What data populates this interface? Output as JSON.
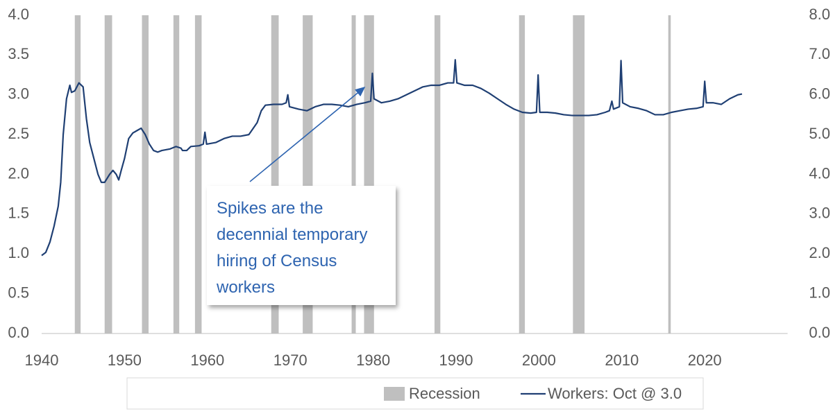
{
  "chart_data": {
    "type": "line",
    "xlim": [
      1940,
      2030
    ],
    "xticks": [
      1940,
      1950,
      1960,
      1970,
      1980,
      1990,
      2000,
      2010,
      2020
    ],
    "ylim": [
      0,
      4
    ],
    "yticks": [
      {
        "value": 0,
        "label": "0.0"
      },
      0.5,
      {
        "value": 1,
        "label": "1.0"
      },
      1.5,
      {
        "value": 2,
        "label": "2.0"
      },
      2.5,
      {
        "value": 3,
        "label": "3.0"
      },
      3.5,
      {
        "value": 4,
        "label": "4.0"
      }
    ],
    "y2lim": [
      0,
      8
    ],
    "y2ticks": [
      {
        "value": 0,
        "label": "0.0"
      },
      {
        "value": 1,
        "label": "1.0"
      },
      {
        "value": 2,
        "label": "2.0"
      },
      {
        "value": 3,
        "label": "3.0"
      },
      {
        "value": 4,
        "label": "4.0"
      },
      {
        "value": 5,
        "label": "5.0"
      },
      {
        "value": 6,
        "label": "6.0"
      },
      {
        "value": 7,
        "label": "7.0"
      },
      {
        "value": 8,
        "label": "8.0"
      }
    ],
    "grid": false,
    "legend": "bottom",
    "annotation": "Spikes are the decennial temporary hiring of Census workers",
    "series": [
      {
        "name": "Recession",
        "color": "#bfbfbf",
        "ranges": [
          [
            1944.0,
            1944.7
          ],
          [
            1947.6,
            1948.5
          ],
          [
            1952.1,
            1952.9
          ],
          [
            1955.9,
            1956.6
          ],
          [
            1958.5,
            1959.3
          ],
          [
            1967.7,
            1968.6
          ],
          [
            1971.5,
            1972.7
          ],
          [
            1977.4,
            1977.9
          ],
          [
            1978.9,
            1980.1
          ],
          [
            1987.4,
            1988.1
          ],
          [
            1997.6,
            1998.3
          ],
          [
            2004.1,
            2005.5
          ],
          [
            2015.6,
            2015.9
          ]
        ]
      },
      {
        "name": "Workers: Oct @ 3.0",
        "color": "#1f3f73",
        "x": [
          1940.0,
          1940.5,
          1941,
          1941.5,
          1942,
          1942.3,
          1942.6,
          1943,
          1943.4,
          1943.6,
          1944,
          1944.5,
          1945,
          1945.4,
          1945.8,
          1946.3,
          1946.8,
          1947.2,
          1947.6,
          1948.2,
          1948.6,
          1949,
          1949.3,
          1949.6,
          1950,
          1950.5,
          1951,
          1951.5,
          1952,
          1952.5,
          1953,
          1953.5,
          1954,
          1954.5,
          1955.5,
          1956.2,
          1956.8,
          1957,
          1957.5,
          1958,
          1959,
          1959.5,
          1959.7,
          1959.9,
          1961,
          1962,
          1963,
          1964,
          1965,
          1966,
          1966.5,
          1967,
          1968,
          1969,
          1969.5,
          1969.7,
          1969.9,
          1971,
          1972,
          1973,
          1974,
          1975,
          1976,
          1977,
          1978,
          1979,
          1979.7,
          1979.9,
          1980.1,
          1981,
          1982,
          1983,
          1984,
          1985,
          1986,
          1987,
          1988,
          1989,
          1989.7,
          1989.9,
          1990.1,
          1991,
          1992,
          1993,
          1994,
          1995,
          1996,
          1997,
          1998,
          1999,
          1999.7,
          1999.9,
          2000.1,
          2001,
          2002,
          2003,
          2004,
          2005,
          2006,
          2007,
          2008,
          2008.5,
          2008.8,
          2009,
          2009.7,
          2009.9,
          2010.1,
          2011,
          2012,
          2013,
          2014,
          2015,
          2016,
          2017,
          2018,
          2019,
          2019.8,
          2020.0,
          2020.2,
          2021,
          2022,
          2023,
          2024,
          2024.5
        ],
        "values": [
          0.98,
          1.02,
          1.15,
          1.35,
          1.6,
          1.9,
          2.5,
          2.95,
          3.12,
          3.03,
          3.05,
          3.15,
          3.1,
          2.7,
          2.4,
          2.2,
          2.0,
          1.9,
          1.9,
          2.0,
          2.05,
          2.0,
          1.93,
          2.05,
          2.2,
          2.45,
          2.52,
          2.55,
          2.58,
          2.5,
          2.38,
          2.3,
          2.28,
          2.3,
          2.32,
          2.35,
          2.33,
          2.3,
          2.3,
          2.35,
          2.36,
          2.38,
          2.53,
          2.38,
          2.4,
          2.45,
          2.48,
          2.48,
          2.5,
          2.65,
          2.8,
          2.87,
          2.88,
          2.88,
          2.9,
          3.0,
          2.85,
          2.82,
          2.8,
          2.85,
          2.88,
          2.88,
          2.87,
          2.85,
          2.88,
          2.9,
          2.92,
          3.27,
          2.95,
          2.9,
          2.92,
          2.95,
          3.0,
          3.05,
          3.1,
          3.12,
          3.12,
          3.15,
          3.15,
          3.44,
          3.15,
          3.12,
          3.12,
          3.08,
          3.02,
          2.95,
          2.88,
          2.82,
          2.78,
          2.77,
          2.78,
          3.25,
          2.78,
          2.78,
          2.77,
          2.75,
          2.74,
          2.74,
          2.74,
          2.75,
          2.78,
          2.8,
          2.92,
          2.82,
          2.85,
          3.43,
          2.9,
          2.85,
          2.83,
          2.8,
          2.75,
          2.75,
          2.78,
          2.8,
          2.82,
          2.83,
          2.85,
          3.17,
          2.9,
          2.9,
          2.88,
          2.95,
          3.0,
          3.01
        ]
      }
    ]
  }
}
